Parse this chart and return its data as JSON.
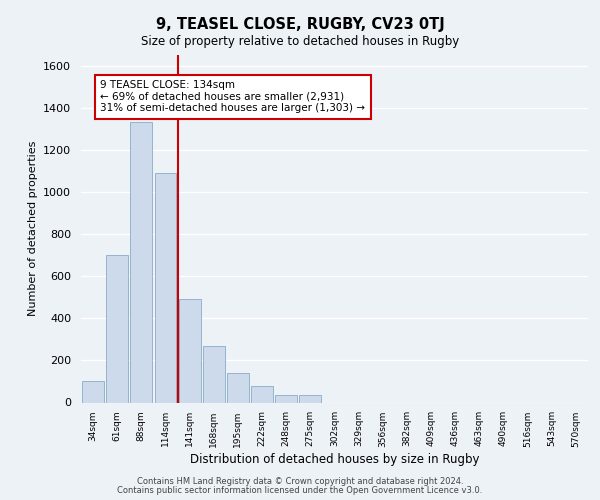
{
  "title_line1": "9, TEASEL CLOSE, RUGBY, CV23 0TJ",
  "title_line2": "Size of property relative to detached houses in Rugby",
  "xlabel": "Distribution of detached houses by size in Rugby",
  "ylabel": "Number of detached properties",
  "categories": [
    "34sqm",
    "61sqm",
    "88sqm",
    "114sqm",
    "141sqm",
    "168sqm",
    "195sqm",
    "222sqm",
    "248sqm",
    "275sqm",
    "302sqm",
    "329sqm",
    "356sqm",
    "382sqm",
    "409sqm",
    "436sqm",
    "463sqm",
    "490sqm",
    "516sqm",
    "543sqm",
    "570sqm"
  ],
  "values": [
    100,
    700,
    1330,
    1090,
    490,
    270,
    140,
    80,
    35,
    35,
    0,
    0,
    0,
    0,
    0,
    0,
    0,
    0,
    0,
    0,
    0
  ],
  "bar_color": "#ccdaeb",
  "bar_edge_color": "#7aa0c0",
  "vline_x_index": 3.5,
  "vline_color": "#cc0000",
  "annotation_text": "9 TEASEL CLOSE: 134sqm\n← 69% of detached houses are smaller (2,931)\n31% of semi-detached houses are larger (1,303) →",
  "annotation_box_edge": "#cc0000",
  "ylim": [
    0,
    1650
  ],
  "yticks": [
    0,
    200,
    400,
    600,
    800,
    1000,
    1200,
    1400,
    1600
  ],
  "footer_line1": "Contains HM Land Registry data © Crown copyright and database right 2024.",
  "footer_line2": "Contains public sector information licensed under the Open Government Licence v3.0.",
  "background_color": "#edf2f7",
  "plot_background": "#edf2f7"
}
